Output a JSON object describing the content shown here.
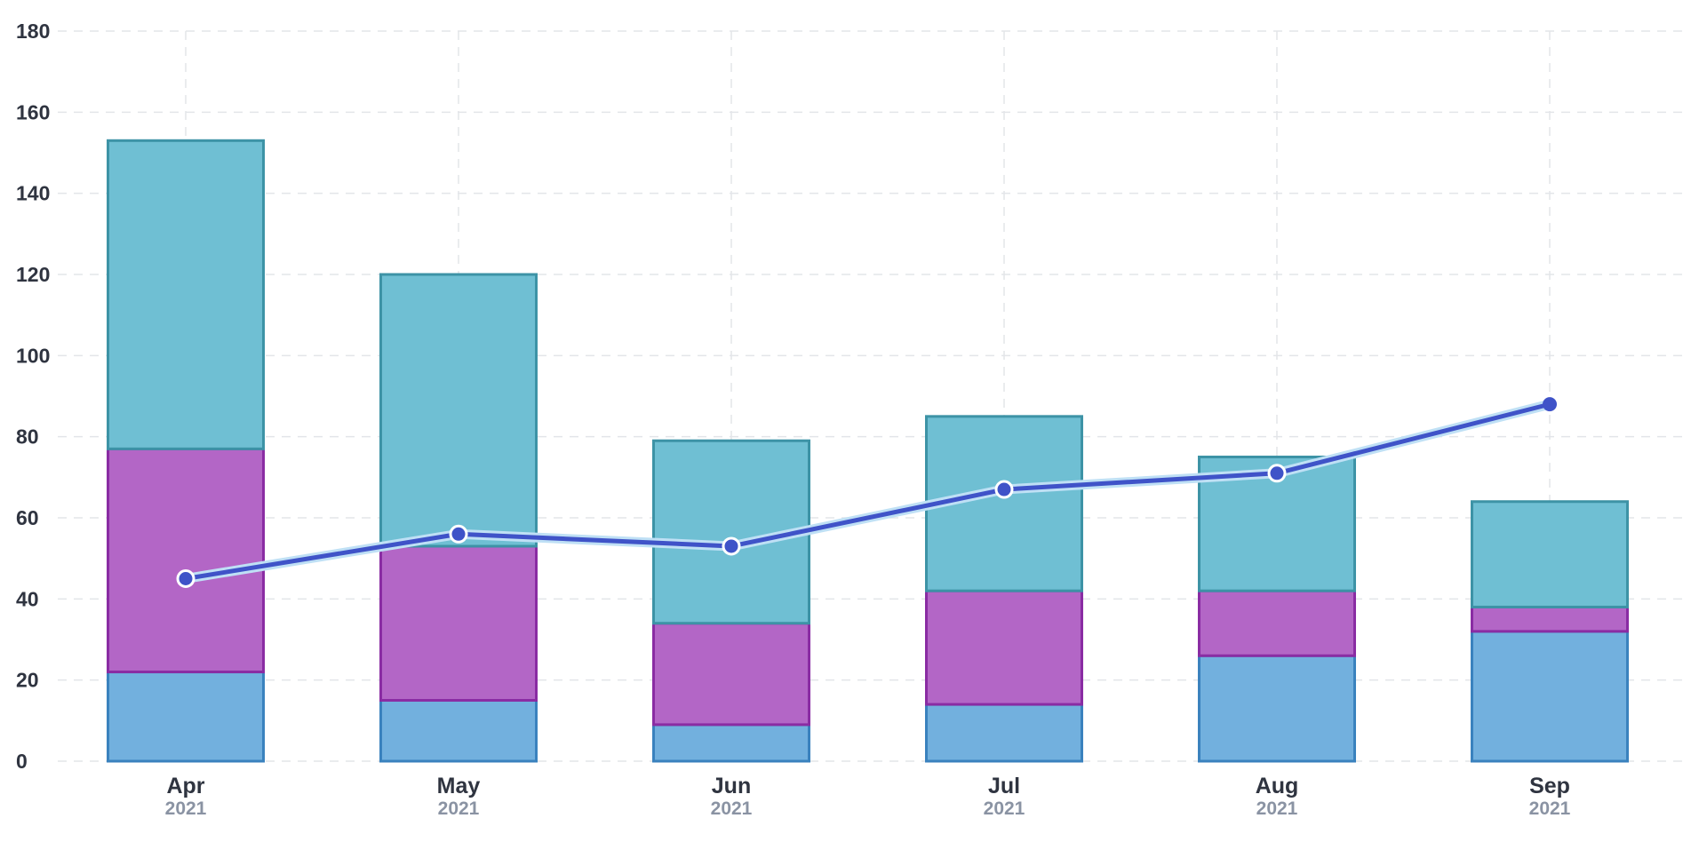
{
  "chart_data": {
    "type": "bar",
    "stacked": true,
    "categories": [
      "Apr",
      "May",
      "Jun",
      "Jul",
      "Aug",
      "Sep"
    ],
    "category_years": [
      "2021",
      "2021",
      "2021",
      "2021",
      "2021",
      "2021"
    ],
    "ylim": [
      0,
      180
    ],
    "yticks": [
      0,
      20,
      40,
      60,
      80,
      100,
      120,
      140,
      160,
      180
    ],
    "grid": true,
    "series": [
      {
        "type": "bar",
        "values": [
          22,
          15,
          9,
          14,
          26,
          32
        ],
        "fill": "#72b0de",
        "stroke": "#3a82be"
      },
      {
        "type": "bar",
        "values": [
          55,
          38,
          25,
          28,
          16,
          6
        ],
        "fill": "#b366c6",
        "stroke": "#8a2ca3"
      },
      {
        "type": "bar",
        "values": [
          76,
          67,
          45,
          43,
          33,
          26
        ],
        "fill": "#6fbfd3",
        "stroke": "#3d93a6"
      },
      {
        "type": "line",
        "values": [
          45,
          56,
          53,
          67,
          71,
          88
        ],
        "color": "#3f53c8",
        "halo": "#bfe0f5"
      }
    ]
  }
}
